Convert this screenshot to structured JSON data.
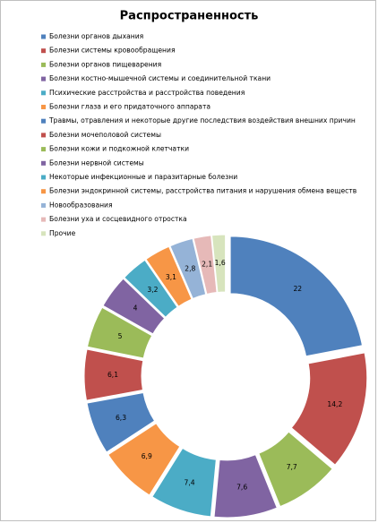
{
  "chart_data": {
    "type": "doughnut",
    "title": "Распространенность",
    "categories": [
      "Болезни органов дыхания",
      "Болезни системы кровообращения",
      "Болезни органов пищеварения",
      "Болезни костно-мышечной системы и соединительной ткани",
      "Психические расстройства и расстройства поведения",
      "Болезни глаза и его придаточного аппарата",
      "Травмы, отравления и некоторые другие последствия воздействия внешних причин",
      "Болезни мочеполовой системы",
      "Болезни кожи и подкожной клетчатки",
      "Болезни нервной системы",
      "Некоторые инфекционные и паразитарные болезни",
      "Болезни эндокринной системы, расстройства питания и нарушения обмена веществ",
      "Новообразования",
      "Болезни уха и сосцевидного отростка",
      "Прочие"
    ],
    "values": [
      22,
      14.2,
      7.7,
      7.6,
      7.4,
      6.9,
      6.3,
      6.1,
      5,
      4,
      3.2,
      3.1,
      2.8,
      2.1,
      1.6
    ],
    "value_labels": [
      "22",
      "14,2",
      "7,7",
      "7,6",
      "7,4",
      "6,9",
      "6,3",
      "6,1",
      "5",
      "4",
      "3,2",
      "3,1",
      "2,8",
      "2,1",
      "1,6"
    ],
    "colors": [
      "#4f81bd",
      "#c0504d",
      "#9bbb59",
      "#8064a2",
      "#4bacc6",
      "#f79646",
      "#4f81bd",
      "#c0504d",
      "#9bbb59",
      "#8064a2",
      "#4bacc6",
      "#f79646",
      "#95b3d7",
      "#e6b9b8",
      "#d7e4bd"
    ],
    "legend": "top-left"
  }
}
